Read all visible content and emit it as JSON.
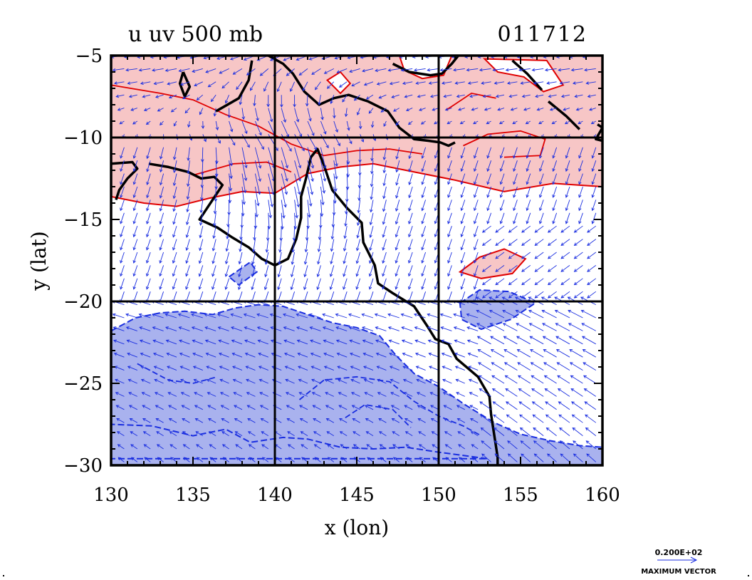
{
  "chart_data": {
    "type": "contour+vector",
    "title_left": "u uv 500 mb",
    "title_right": "011712",
    "xlabel": "x (lon)",
    "ylabel": "y (lat)",
    "xlim": [
      130,
      160
    ],
    "ylim": [
      -30,
      -5
    ],
    "xticks": [
      130,
      135,
      140,
      145,
      150,
      155,
      160
    ],
    "xtick_labels": [
      "130",
      "135",
      "140",
      "145",
      "150",
      "155",
      "160"
    ],
    "yticks": [
      -5,
      -10,
      -15,
      -20,
      -25,
      -30
    ],
    "ytick_labels": [
      "−5",
      "−10",
      "−15",
      "−20",
      "−25",
      "−30"
    ],
    "grid_x": [
      140,
      150
    ],
    "grid_y": [
      -10,
      -20
    ],
    "colors": {
      "positive_fill": "#f7c6c6",
      "positive_line": "#e00000",
      "negative_fill": "#a9b2ee",
      "negative_line": "#1a2ee0",
      "vector": "#1a2ee0",
      "coast": "#000000"
    },
    "positive_regions": [
      [
        [
          130,
          -5
        ],
        [
          160,
          -5
        ],
        [
          160,
          -13
        ],
        [
          157,
          -12.8
        ],
        [
          154,
          -13.3
        ],
        [
          151,
          -12.6
        ],
        [
          148,
          -12
        ],
        [
          146,
          -11.6
        ],
        [
          144,
          -11.8
        ],
        [
          142,
          -12.2
        ],
        [
          140,
          -13.4
        ],
        [
          138,
          -13.3
        ],
        [
          136,
          -13.7
        ],
        [
          134,
          -14.2
        ],
        [
          132,
          -14
        ],
        [
          130,
          -13.6
        ]
      ],
      [
        [
          151.3,
          -18.2
        ],
        [
          152.5,
          -17.3
        ],
        [
          154,
          -16.8
        ],
        [
          155.3,
          -17.4
        ],
        [
          154.5,
          -18.3
        ],
        [
          152.6,
          -18.6
        ]
      ],
      [
        [
          130,
          -29.3
        ],
        [
          131,
          -29
        ],
        [
          132,
          -29.6
        ],
        [
          132.8,
          -30
        ],
        [
          130,
          -30
        ]
      ]
    ],
    "positive_holes": [
      [
        [
          143.2,
          -6.5
        ],
        [
          144,
          -6
        ],
        [
          144.6,
          -6.7
        ],
        [
          144,
          -7.3
        ]
      ],
      [
        [
          147.6,
          -5
        ],
        [
          150.8,
          -5
        ],
        [
          150.3,
          -6.2
        ],
        [
          149,
          -6.4
        ],
        [
          147.9,
          -5.9
        ]
      ],
      [
        [
          152.8,
          -5.2
        ],
        [
          156.6,
          -5.3
        ],
        [
          157.6,
          -6.8
        ],
        [
          156.4,
          -7.2
        ],
        [
          155.2,
          -6.3
        ],
        [
          153.6,
          -6
        ]
      ]
    ],
    "negative_regions": [
      [
        [
          130,
          -21.8
        ],
        [
          131.5,
          -21
        ],
        [
          133,
          -20.7
        ],
        [
          134.5,
          -20.6
        ],
        [
          136.2,
          -20.8
        ],
        [
          137.6,
          -20.4
        ],
        [
          139,
          -20.2
        ],
        [
          140.5,
          -20.3
        ],
        [
          142,
          -20.8
        ],
        [
          143.5,
          -21.3
        ],
        [
          145,
          -21.6
        ],
        [
          146.4,
          -22.1
        ],
        [
          147.4,
          -23.3
        ],
        [
          148.5,
          -24.4
        ],
        [
          150,
          -25.2
        ],
        [
          151.6,
          -26.3
        ],
        [
          153.4,
          -27.4
        ],
        [
          155,
          -28.1
        ],
        [
          156.8,
          -28.5
        ],
        [
          158.6,
          -28.8
        ],
        [
          160,
          -28.9
        ],
        [
          160,
          -30
        ],
        [
          130,
          -30
        ],
        [
          130,
          -27.5
        ],
        [
          132.5,
          -27.6
        ],
        [
          135,
          -28.2
        ],
        [
          137,
          -27.8
        ],
        [
          138.5,
          -28.6
        ],
        [
          140.5,
          -28.3
        ],
        [
          142,
          -28.4
        ],
        [
          144,
          -28.9
        ],
        [
          146,
          -29
        ],
        [
          148,
          -28.9
        ],
        [
          150,
          -29.2
        ],
        [
          153,
          -29.6
        ],
        [
          130,
          -29.6
        ]
      ],
      [
        [
          137.2,
          -18.5
        ],
        [
          138.5,
          -17.6
        ],
        [
          138.9,
          -18.2
        ],
        [
          137.8,
          -19
        ]
      ],
      [
        [
          151.3,
          -20.1
        ],
        [
          152.5,
          -19.3
        ],
        [
          154.3,
          -19.4
        ],
        [
          155.9,
          -20.1
        ],
        [
          154.4,
          -21.1
        ],
        [
          152.6,
          -21.7
        ],
        [
          151.4,
          -21.1
        ]
      ]
    ],
    "vector_reference": {
      "magnitude_label": "0.200E+02",
      "caption": "MAXIMUM VECTOR"
    }
  }
}
